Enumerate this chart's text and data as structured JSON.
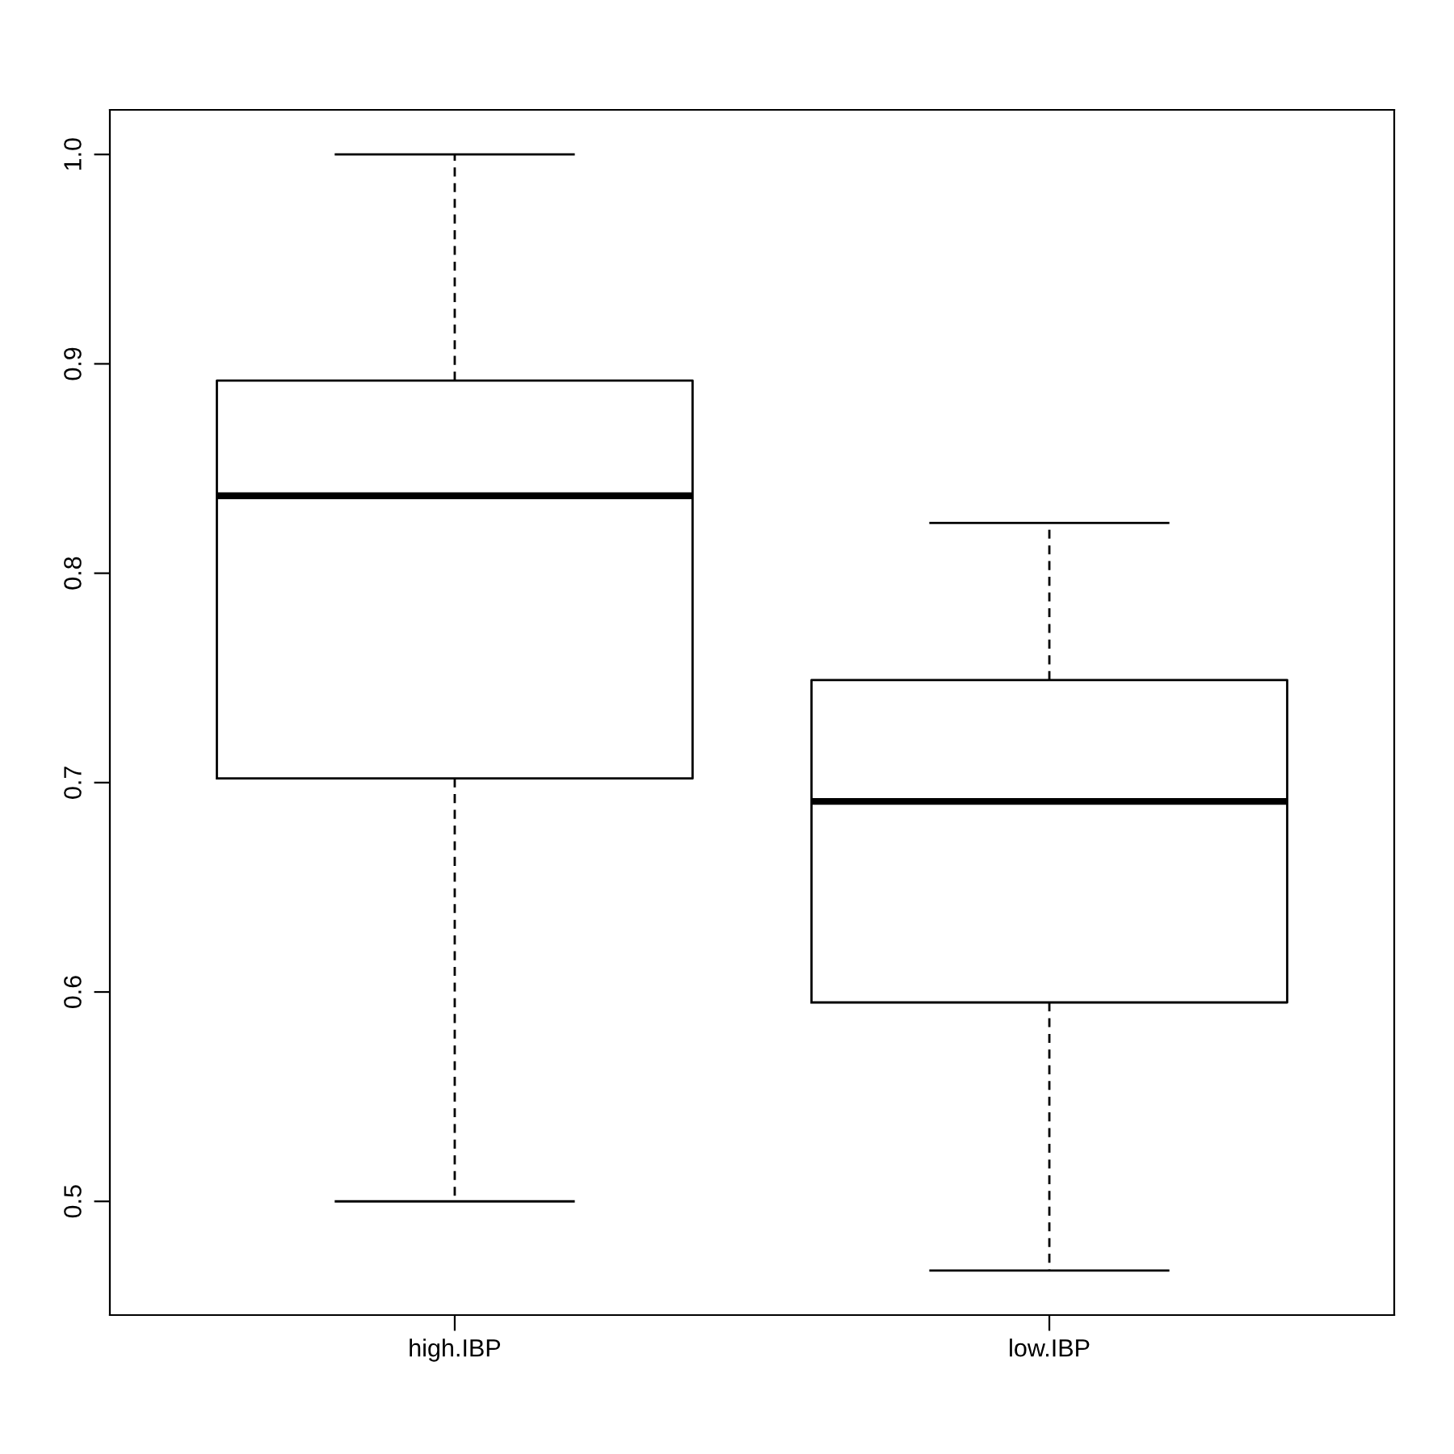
{
  "chart_data": {
    "type": "box",
    "categories": [
      "high.IBP",
      "low.IBP"
    ],
    "boxes": [
      {
        "low": 0.5,
        "q1": 0.702,
        "median": 0.837,
        "q3": 0.892,
        "high": 1.0
      },
      {
        "low": 0.467,
        "q1": 0.595,
        "median": 0.691,
        "q3": 0.749,
        "high": 0.824
      }
    ],
    "color": "#000000",
    "ylim": [
      0.4457,
      1.0213
    ],
    "yticks": [
      0.5,
      0.6,
      0.7,
      0.8,
      0.9,
      {
        "value": 1.0,
        "label": "1.0"
      }
    ],
    "grid": false,
    "legend": false
  }
}
